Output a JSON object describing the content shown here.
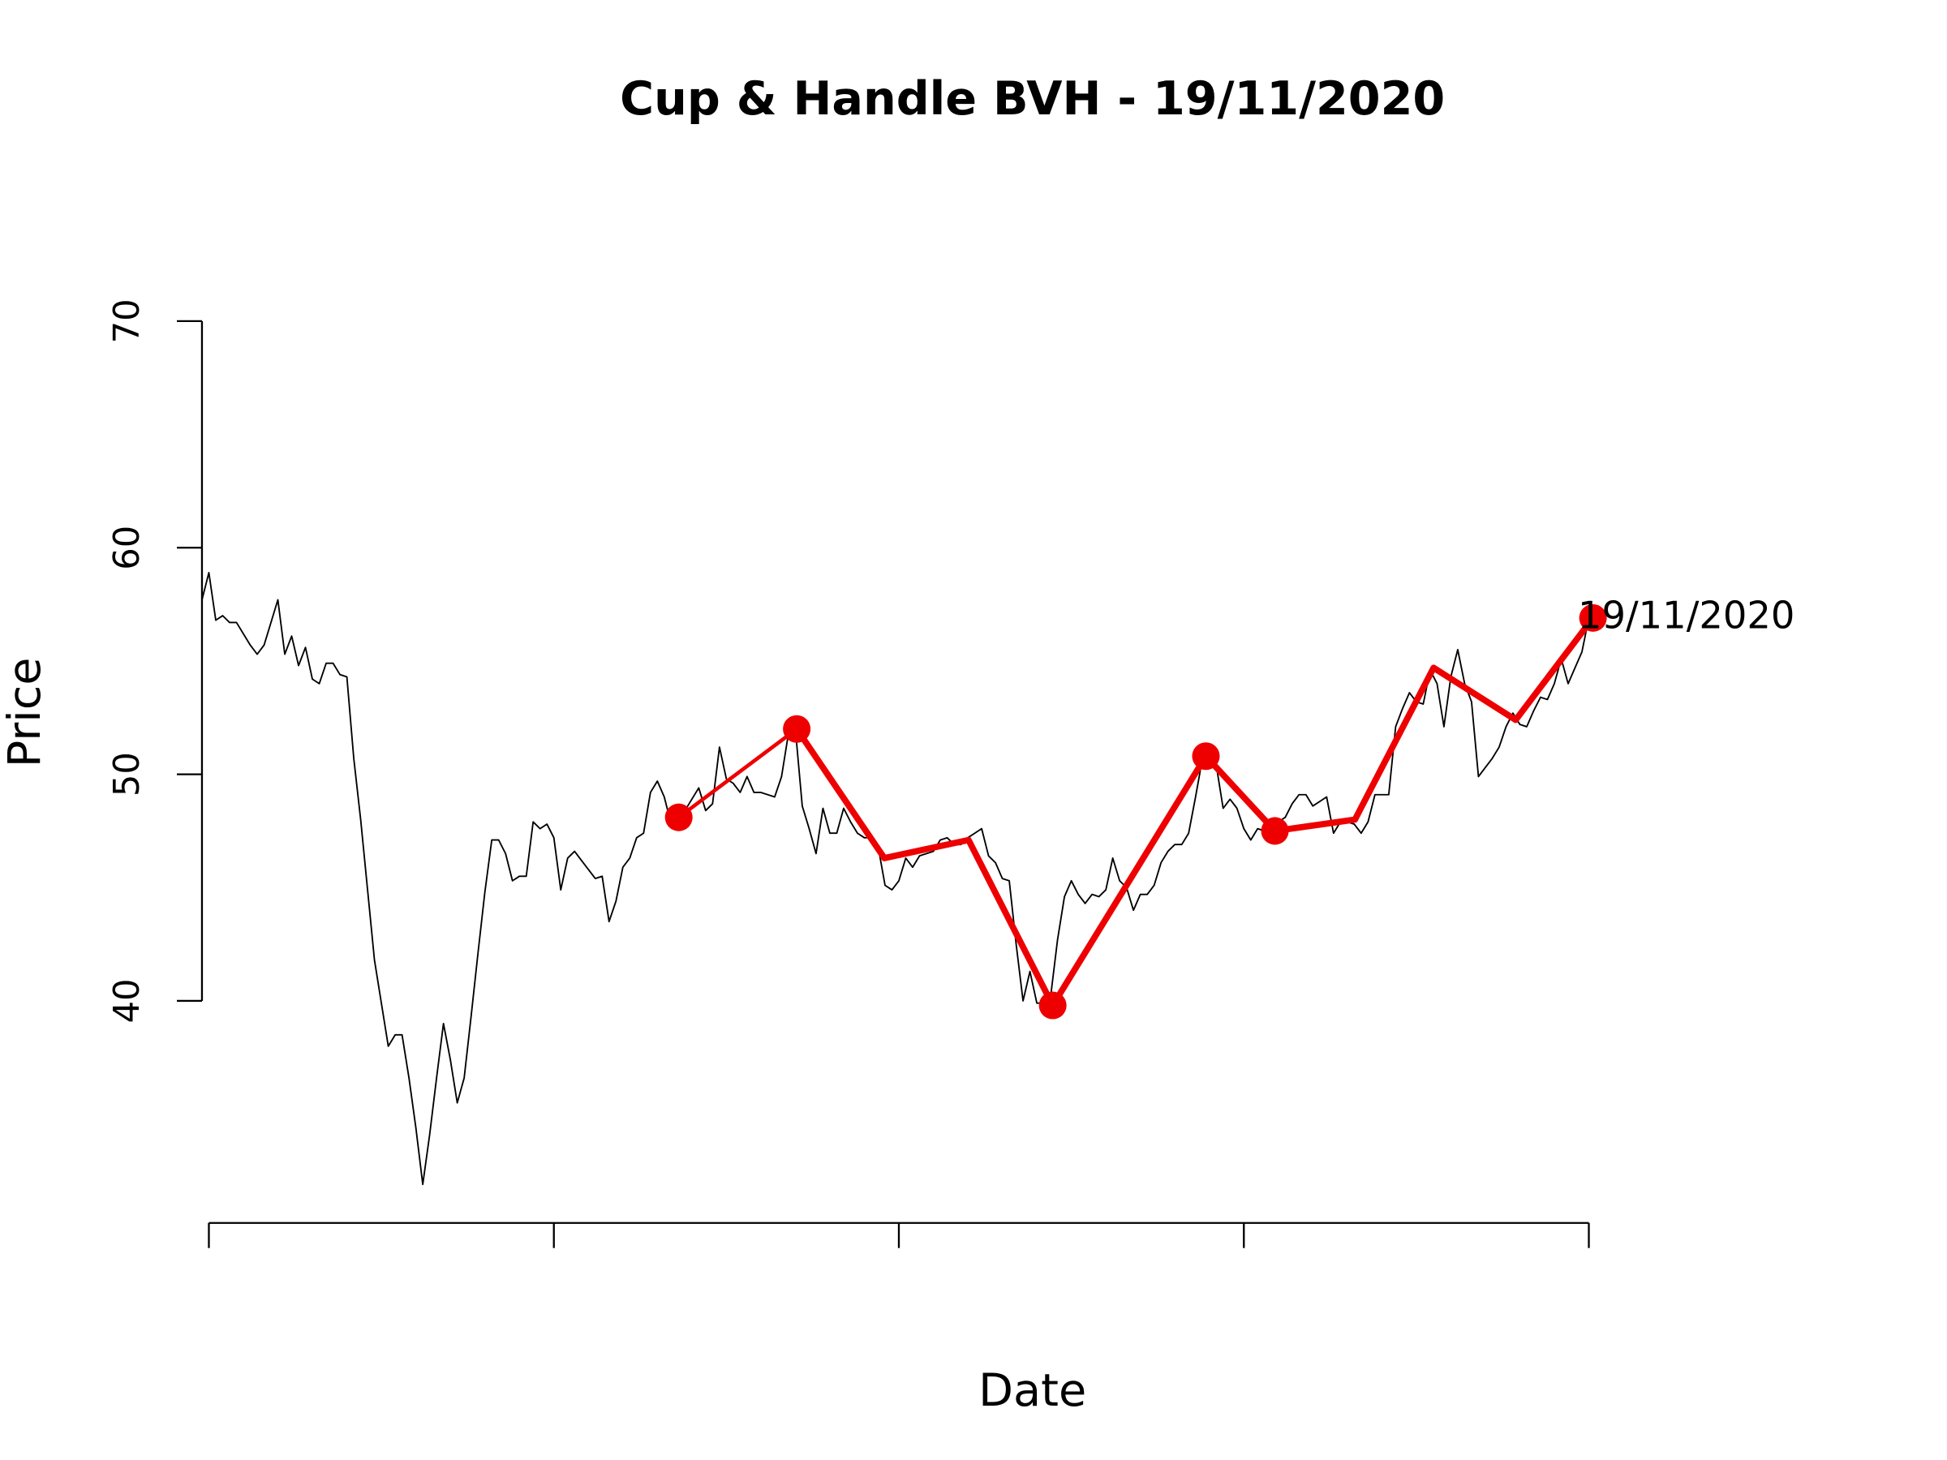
{
  "chart_data": {
    "type": "line",
    "title": "Cup & Handle BVH - 19/11/2020",
    "xlabel": "Date",
    "ylabel": "Price",
    "annotation": "19/11/2020",
    "xlim": [
      0,
      201
    ],
    "xticks": [
      1,
      51,
      101,
      151,
      201
    ],
    "ylim": [
      30.2,
      73.1
    ],
    "yticks": [
      40,
      50,
      60,
      70
    ],
    "series": [
      {
        "color": "#000000",
        "line_width": 1.2,
        "values": [
          57.7,
          58.9,
          56.8,
          57.0,
          56.7,
          56.7,
          56.2,
          55.7,
          55.3,
          55.7,
          56.7,
          57.7,
          55.3,
          56.1,
          54.8,
          55.6,
          54.2,
          54.0,
          54.9,
          54.9,
          54.4,
          54.3,
          50.7,
          48.0,
          44.9,
          41.8,
          39.9,
          38.0,
          38.5,
          38.5,
          36.6,
          34.4,
          31.9,
          34.1,
          36.6,
          39.0,
          37.4,
          35.5,
          36.6,
          39.3,
          42.1,
          44.8,
          47.1,
          47.1,
          46.5,
          45.3,
          45.5,
          45.5,
          47.9,
          47.6,
          47.8,
          47.2,
          44.9,
          46.3,
          46.6,
          46.2,
          45.8,
          45.4,
          45.5,
          43.5,
          44.4,
          45.9,
          46.3,
          47.2,
          47.4,
          49.2,
          49.7,
          49.0,
          47.8,
          48.1,
          48.4,
          48.9,
          49.4,
          48.4,
          48.7,
          51.2,
          49.8,
          49.6,
          49.2,
          49.9,
          49.2,
          49.2,
          49.1,
          49.0,
          49.9,
          51.8,
          52.0,
          48.6,
          47.6,
          46.5,
          48.5,
          47.4,
          47.4,
          48.5,
          47.9,
          47.4,
          47.2,
          47.2,
          46.8,
          45.1,
          44.9,
          45.3,
          46.3,
          45.9,
          46.4,
          46.5,
          46.6,
          47.1,
          47.2,
          46.9,
          46.9,
          47.2,
          47.4,
          47.6,
          46.4,
          46.1,
          45.4,
          45.3,
          42.5,
          40.0,
          41.3,
          39.9,
          39.9,
          40.2,
          42.7,
          44.6,
          45.3,
          44.7,
          44.3,
          44.7,
          44.6,
          44.9,
          46.3,
          45.3,
          45.0,
          44.0,
          44.7,
          44.7,
          45.1,
          46.1,
          46.6,
          46.9,
          46.9,
          47.4,
          49.0,
          50.7,
          50.8,
          50.4,
          48.5,
          48.9,
          48.5,
          47.6,
          47.1,
          47.6,
          47.5,
          47.6,
          47.9,
          48.1,
          48.7,
          49.1,
          49.1,
          48.6,
          48.8,
          49.0,
          47.4,
          47.9,
          47.9,
          47.8,
          47.4,
          47.9,
          49.1,
          49.1,
          49.1,
          52.1,
          52.9,
          53.6,
          53.2,
          53.1,
          54.6,
          54.0,
          52.1,
          54.3,
          55.5,
          54.0,
          53.2,
          49.9,
          50.3,
          50.7,
          51.2,
          52.1,
          52.7,
          52.2,
          52.1,
          52.8,
          53.4,
          53.3,
          54.0,
          55.1,
          54.0,
          54.7,
          55.4,
          56.9
        ]
      },
      {
        "color": "#ee0000",
        "line_width": 3,
        "x": [
          69.1,
          86.2
        ],
        "values": [
          48.1,
          52.0
        ]
      },
      {
        "color": "#ee0000",
        "line_width": 5,
        "x": [
          86.2,
          98.9,
          111.1,
          123.3,
          145.5,
          155.5,
          167.1,
          178.5,
          190.4,
          201.6
        ],
        "values": [
          52.0,
          46.3,
          47.1,
          39.8,
          50.8,
          47.5,
          48.0,
          54.7,
          52.4,
          56.9
        ]
      },
      {
        "color": "#ee0000",
        "marker": "circle",
        "x": [
          69.1,
          86.2,
          123.3,
          145.5,
          155.5,
          201.6
        ],
        "values": [
          48.1,
          52.0,
          39.8,
          50.8,
          47.5,
          56.9
        ]
      }
    ]
  }
}
